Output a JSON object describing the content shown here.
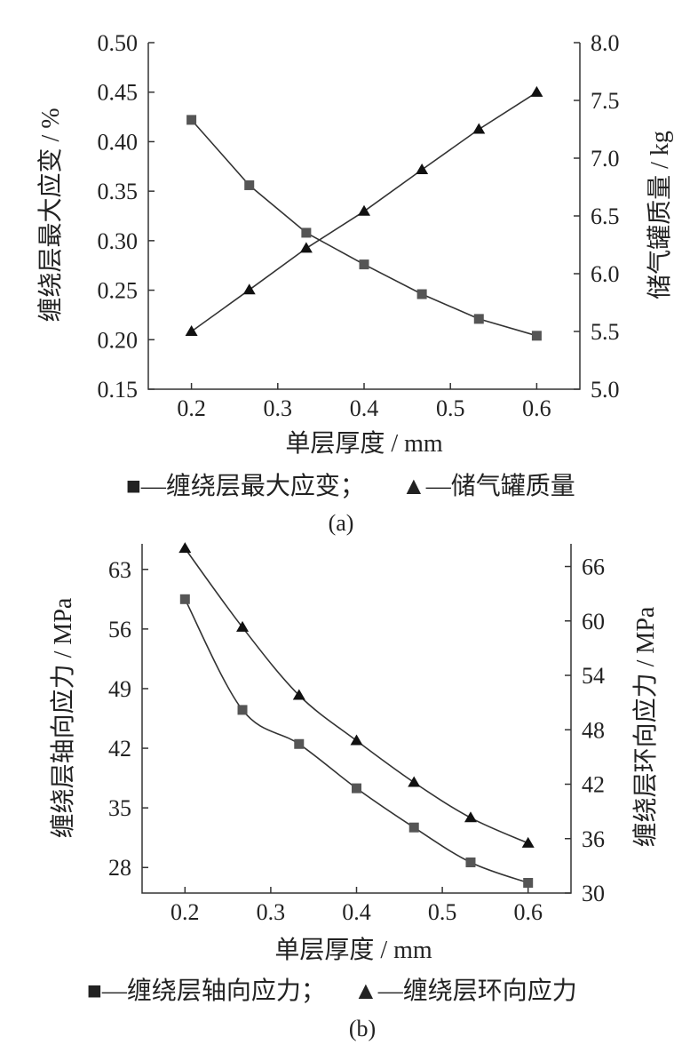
{
  "chart_data": [
    {
      "type": "line",
      "panel": "(a)",
      "caption": "(a)",
      "xlabel": "单层厚度 / mm",
      "xlim": [
        0.15,
        0.65
      ],
      "xticks": [
        "0.2",
        "0.3",
        "0.4",
        "0.5",
        "0.6"
      ],
      "y_left": {
        "label": "缠绕层最大应变 / %",
        "lim": [
          0.15,
          0.5
        ],
        "ticks": [
          "0.15",
          "0.20",
          "0.25",
          "0.30",
          "0.35",
          "0.40",
          "0.45",
          "0.50"
        ]
      },
      "y_right": {
        "label": "储气罐质量 / kg",
        "lim": [
          5.0,
          8.0
        ],
        "ticks": [
          "5.0",
          "5.5",
          "6.0",
          "6.5",
          "7.0",
          "7.5",
          "8.0"
        ]
      },
      "series": [
        {
          "name": "缠绕层最大应变",
          "axis": "left",
          "marker": "square",
          "legend_label": "■—缠绕层最大应变；",
          "x": [
            0.2,
            0.267,
            0.333,
            0.4,
            0.467,
            0.533,
            0.6
          ],
          "values": [
            0.422,
            0.356,
            0.308,
            0.276,
            0.246,
            0.221,
            0.204
          ]
        },
        {
          "name": "储气罐质量",
          "axis": "right",
          "marker": "triangle",
          "legend_label": "▲—储气罐质量",
          "x": [
            0.2,
            0.267,
            0.333,
            0.4,
            0.467,
            0.533,
            0.6
          ],
          "values": [
            5.5,
            5.86,
            6.22,
            6.54,
            6.9,
            7.25,
            7.57
          ]
        }
      ]
    },
    {
      "type": "line",
      "panel": "(b)",
      "caption": "(b)",
      "xlabel": "单层厚度 / mm",
      "xlim": [
        0.15,
        0.65
      ],
      "xticks": [
        "0.2",
        "0.3",
        "0.4",
        "0.5",
        "0.6"
      ],
      "y_left": {
        "label": "缠绕层轴向应力 / MPa",
        "lim": [
          25,
          66
        ],
        "ticks": [
          "28",
          "35",
          "42",
          "49",
          "56",
          "63"
        ]
      },
      "y_right": {
        "label": "缠绕层环向应力 / MPa",
        "lim": [
          30,
          68.5
        ],
        "ticks": [
          "30",
          "36",
          "42",
          "48",
          "54",
          "60",
          "66"
        ]
      },
      "series": [
        {
          "name": "缠绕层轴向应力",
          "axis": "left",
          "marker": "square",
          "legend_label": "■—缠绕层轴向应力；",
          "x": [
            0.2,
            0.267,
            0.333,
            0.4,
            0.467,
            0.533,
            0.6
          ],
          "values": [
            59.5,
            46.5,
            42.5,
            37.3,
            32.7,
            28.6,
            26.2
          ]
        },
        {
          "name": "缠绕层环向应力",
          "axis": "right",
          "marker": "triangle",
          "legend_label": "▲—缠绕层环向应力",
          "x": [
            0.2,
            0.267,
            0.333,
            0.4,
            0.467,
            0.533,
            0.6
          ],
          "values": [
            68.0,
            59.3,
            51.8,
            46.8,
            42.2,
            38.3,
            35.5
          ]
        }
      ]
    }
  ]
}
